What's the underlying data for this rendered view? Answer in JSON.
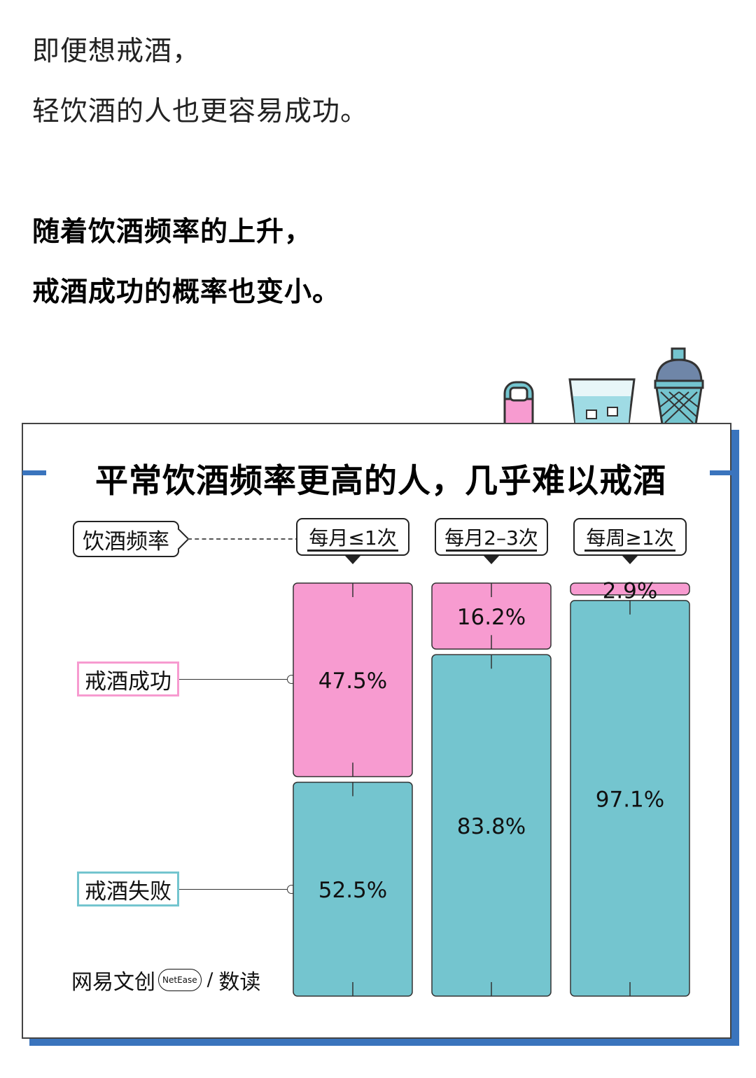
{
  "intro": {
    "line1": "即便想戒酒，",
    "line2": "轻饮酒的人也更容易成功。",
    "line3": "随着饮酒频率的上升，",
    "line4": "戒酒成功的概率也变小。"
  },
  "chart_data": {
    "type": "bar",
    "stacked": true,
    "title": "平常饮酒频率更高的人，几乎难以戒酒",
    "category_label": "饮酒频率",
    "categories": [
      "每月≤1次",
      "每月2–3次",
      "每周≥1次"
    ],
    "series": [
      {
        "name": "戒酒成功",
        "values": [
          47.5,
          16.2,
          2.9
        ],
        "labels": [
          "47.5%",
          "16.2%",
          "2.9%"
        ],
        "color": "#f79bd0"
      },
      {
        "name": "戒酒失败",
        "values": [
          52.5,
          83.8,
          97.1
        ],
        "labels": [
          "52.5%",
          "83.8%",
          "97.1%"
        ],
        "color": "#74c5cf"
      }
    ],
    "unit": "%",
    "ylim": [
      0,
      100
    ]
  },
  "colors": {
    "success": "#f79bd0",
    "failure": "#74c5cf",
    "accent": "#3a74bd",
    "border": "#444444"
  },
  "brand": {
    "left": "网易文创",
    "badge": "NetEase",
    "sep": "/",
    "right": "数读"
  },
  "icons": [
    "bottle-opener-icon",
    "glass-icon",
    "shaker-icon"
  ]
}
